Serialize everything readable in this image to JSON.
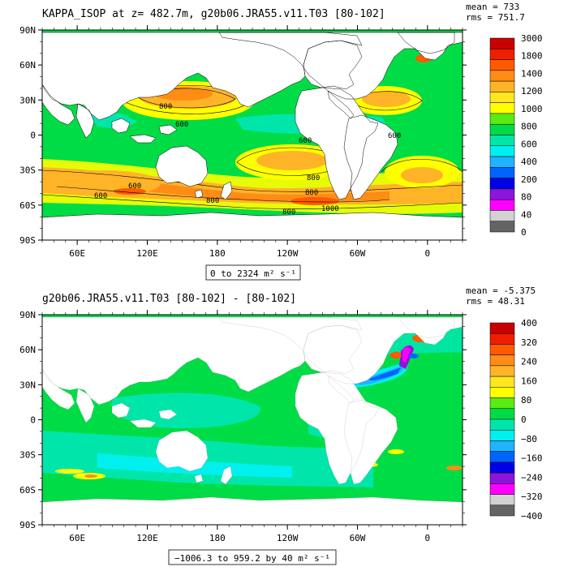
{
  "panels": [
    {
      "title": "KAPPA_ISOP at z= 482.7m, g20b06.JRA55.v11.T03 [80-102]",
      "stats": {
        "mean": "mean = 733",
        "rms": "rms = 751.7"
      },
      "range_label": "0 to 2324 m² s⁻¹",
      "colorbar": {
        "labels": [
          "3000",
          "1800",
          "1400",
          "1200",
          "1000",
          "800",
          "600",
          "400",
          "200",
          "80",
          "40",
          "0"
        ],
        "colors": [
          "#c80000",
          "#f01e00",
          "#ff5a00",
          "#ff8c14",
          "#ffb428",
          "#ffe61e",
          "#ffff00",
          "#5aeb14",
          "#00dc46",
          "#00e6aa",
          "#00f0f0",
          "#1eb4ff",
          "#0064ff",
          "#0000e6",
          "#8c14dc",
          "#ff00ff",
          "#d2d2d2",
          "#646464"
        ]
      },
      "contour_labels": [
        "800",
        "600",
        "600",
        "800",
        "800",
        "800",
        "1000",
        "800",
        "600",
        "600",
        "600"
      ]
    },
    {
      "title": "g20b06.JRA55.v11.T03 [80-102] -  [80-102]",
      "stats": {
        "mean": "mean = -5.375",
        "rms": "rms = 48.31"
      },
      "range_label": "−1006.3 to 959.2 by 40 m² s⁻¹",
      "colorbar": {
        "labels": [
          "400",
          "320",
          "240",
          "160",
          "80",
          "0",
          "−80",
          "−160",
          "−240",
          "−320",
          "−400"
        ],
        "colors": [
          "#c80000",
          "#f01e00",
          "#ff5a00",
          "#ff8c14",
          "#ffb428",
          "#ffe61e",
          "#ffff00",
          "#5aeb14",
          "#00dc46",
          "#00e6aa",
          "#00f0f0",
          "#1eb4ff",
          "#0064ff",
          "#0000e6",
          "#8c14dc",
          "#ff00ff",
          "#d2d2d2",
          "#646464"
        ]
      }
    }
  ],
  "axes": {
    "lat_ticks": [
      "90N",
      "60N",
      "30N",
      "0",
      "30S",
      "60S",
      "90S"
    ],
    "lon_ticks": [
      "60E",
      "120E",
      "180",
      "120W",
      "60W",
      "0"
    ]
  },
  "colors": {
    "land": "#ffffff",
    "frame": "#000000"
  }
}
